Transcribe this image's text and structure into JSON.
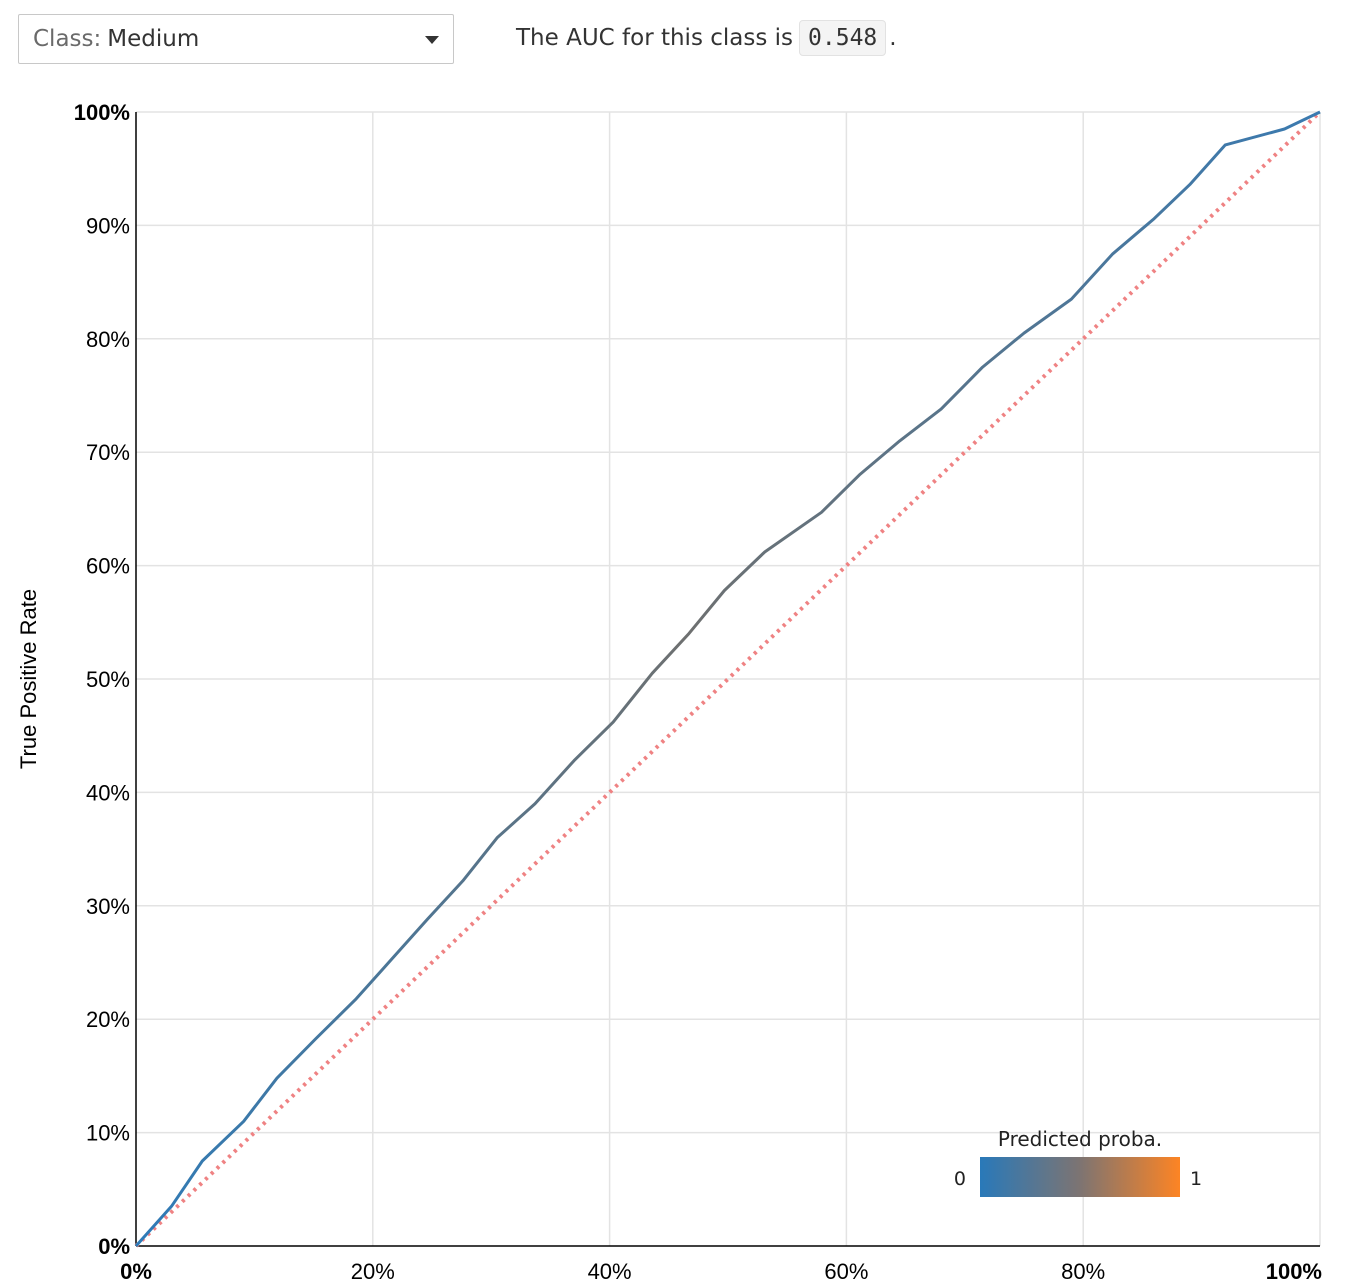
{
  "selector": {
    "label": "Class:",
    "value": "Medium"
  },
  "auc": {
    "prefix": "The AUC for this class is",
    "value": "0.548",
    "suffix": "."
  },
  "chart_data": {
    "type": "line",
    "xlabel": "",
    "ylabel": "True Positive Rate",
    "xlim": [
      0,
      1
    ],
    "ylim": [
      0,
      1
    ],
    "grid": true,
    "x_ticks": [
      {
        "value": 0,
        "label": "0%"
      },
      {
        "value": 0.2,
        "label": "20%"
      },
      {
        "value": 0.4,
        "label": "40%"
      },
      {
        "value": 0.6,
        "label": "60%"
      },
      {
        "value": 0.8,
        "label": "80%"
      },
      {
        "value": 1,
        "label": "100%"
      }
    ],
    "y_ticks": [
      {
        "value": 0,
        "label": "0%"
      },
      {
        "value": 0.1,
        "label": "10%"
      },
      {
        "value": 0.2,
        "label": "20%"
      },
      {
        "value": 0.3,
        "label": "30%"
      },
      {
        "value": 0.4,
        "label": "40%"
      },
      {
        "value": 0.5,
        "label": "50%"
      },
      {
        "value": 0.6,
        "label": "60%"
      },
      {
        "value": 0.7,
        "label": "70%"
      },
      {
        "value": 0.8,
        "label": "80%"
      },
      {
        "value": 0.9,
        "label": "90%"
      },
      {
        "value": 1,
        "label": "100%"
      }
    ],
    "roc_curve": {
      "x": [
        0,
        0.03,
        0.056,
        0.091,
        0.119,
        0.152,
        0.186,
        0.216,
        0.246,
        0.276,
        0.305,
        0.337,
        0.37,
        0.403,
        0.436,
        0.467,
        0.497,
        0.531,
        0.579,
        0.611,
        0.645,
        0.68,
        0.715,
        0.75,
        0.79,
        0.825,
        0.86,
        0.89,
        0.92,
        0.97,
        1.0
      ],
      "y": [
        0,
        0.035,
        0.075,
        0.11,
        0.148,
        0.183,
        0.218,
        0.253,
        0.288,
        0.322,
        0.36,
        0.39,
        0.428,
        0.462,
        0.505,
        0.54,
        0.578,
        0.612,
        0.647,
        0.68,
        0.71,
        0.738,
        0.775,
        0.805,
        0.835,
        0.875,
        0.906,
        0.936,
        0.971,
        0.985,
        1.0
      ],
      "color_start": "#2e7bb8",
      "color_mid": "#6e7070",
      "color_end": "#3a7ab0"
    },
    "baseline": {
      "x": [
        0,
        1
      ],
      "y": [
        0,
        1
      ],
      "color": "#ef8283",
      "style": "dotted"
    },
    "legend": {
      "title": "Predicted proba.",
      "min_label": "0",
      "max_label": "1",
      "color_min": "#2979b9",
      "color_mid": "#7d7472",
      "color_max": "#fd8424",
      "position": "bottom-right"
    }
  }
}
